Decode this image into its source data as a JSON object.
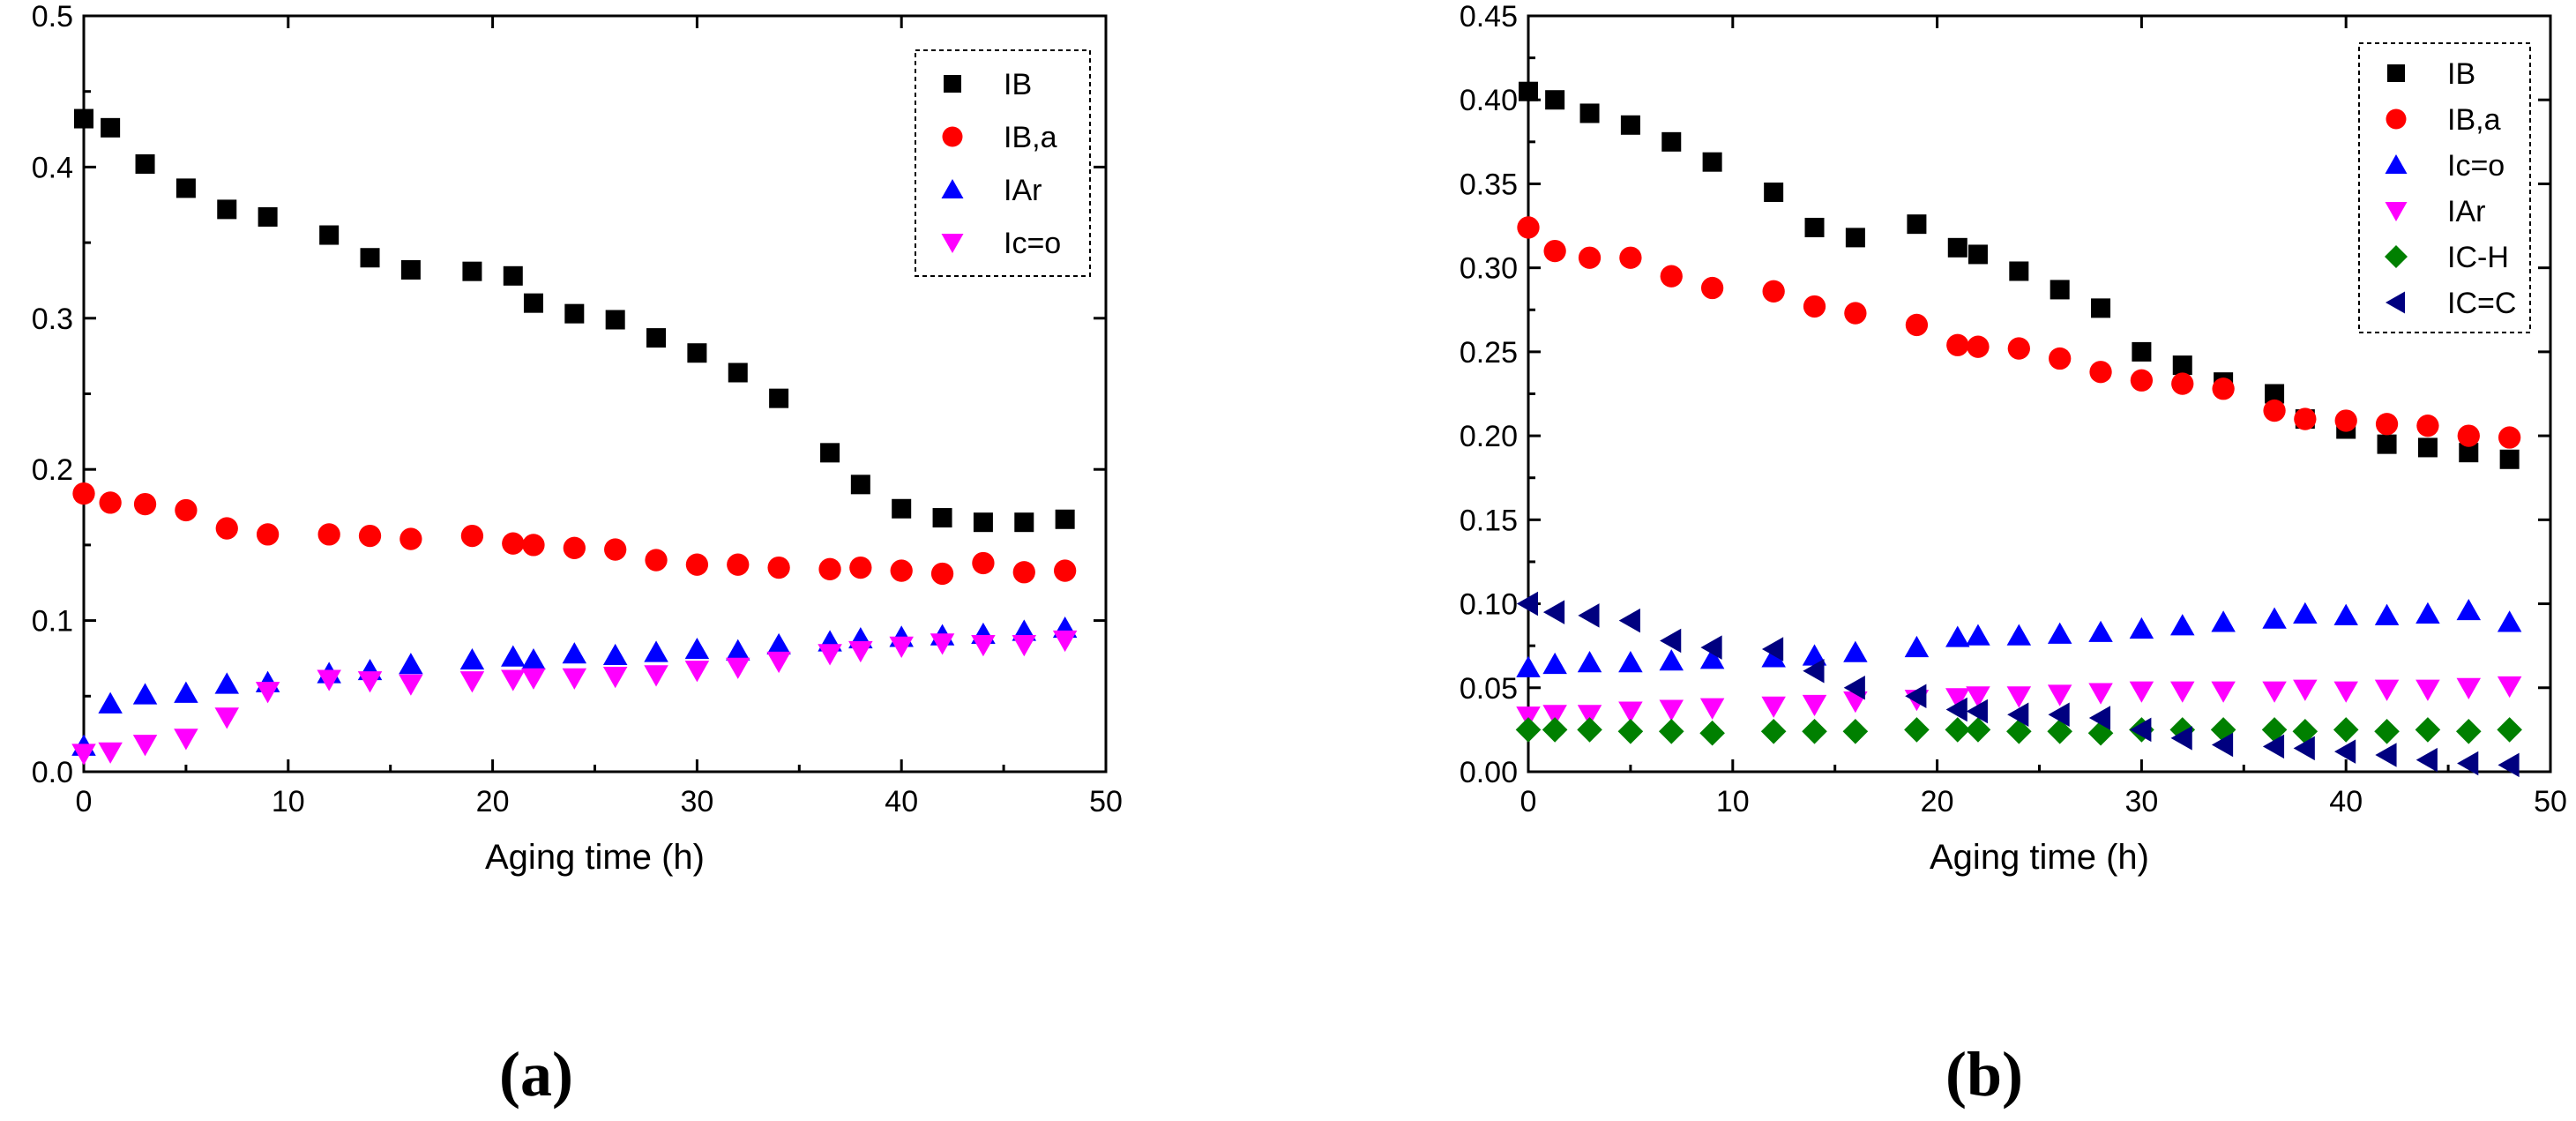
{
  "chart_data": [
    {
      "type": "scatter",
      "panel_label": "(a)",
      "xlabel": "Aging time (h)",
      "ylabel": "",
      "xlim": [
        0,
        50
      ],
      "ylim": [
        0,
        0.5
      ],
      "xticks": [
        "0",
        "10",
        "20",
        "30",
        "40",
        "50"
      ],
      "yticks": [
        "0.0",
        "0.1",
        "0.2",
        "0.3",
        "0.4",
        "0.5"
      ],
      "legend_position": "top-right",
      "series": [
        {
          "name": "IB",
          "marker": "square",
          "color": "#000000",
          "x": [
            0,
            1.3,
            3,
            5,
            7,
            9,
            12,
            14,
            16,
            19,
            21,
            22,
            24,
            26,
            28,
            30,
            32,
            34,
            36.5,
            38,
            40,
            42,
            44,
            46,
            48
          ],
          "y": [
            0.432,
            0.426,
            0.402,
            0.386,
            0.372,
            0.367,
            0.355,
            0.34,
            0.332,
            0.331,
            0.328,
            0.31,
            0.303,
            0.299,
            0.287,
            0.277,
            0.264,
            0.247,
            0.211,
            0.19,
            0.174,
            0.168,
            0.165,
            0.165,
            0.167
          ]
        },
        {
          "name": "IB,a",
          "marker": "circle",
          "color": "#ff0000",
          "x": [
            0,
            1.3,
            3,
            5,
            7,
            9,
            12,
            14,
            16,
            19,
            21,
            22,
            24,
            26,
            28,
            30,
            32,
            34,
            36.5,
            38,
            40,
            42,
            44,
            46,
            48
          ],
          "y": [
            0.184,
            0.178,
            0.177,
            0.173,
            0.161,
            0.157,
            0.157,
            0.156,
            0.154,
            0.156,
            0.151,
            0.15,
            0.148,
            0.147,
            0.14,
            0.137,
            0.137,
            0.135,
            0.134,
            0.135,
            0.133,
            0.131,
            0.138,
            0.132,
            0.133
          ]
        },
        {
          "name": "IAr",
          "marker": "triangle-up",
          "color": "#0000ff",
          "x": [
            0,
            1.3,
            3,
            5,
            7,
            9,
            12,
            14,
            16,
            19,
            21,
            22,
            24,
            26,
            28,
            30,
            32,
            34,
            36.5,
            38,
            40,
            42,
            44,
            46,
            48
          ],
          "y": [
            0.017,
            0.045,
            0.051,
            0.052,
            0.058,
            0.059,
            0.065,
            0.067,
            0.071,
            0.074,
            0.076,
            0.074,
            0.078,
            0.077,
            0.079,
            0.081,
            0.08,
            0.084,
            0.086,
            0.088,
            0.089,
            0.09,
            0.091,
            0.093,
            0.095
          ]
        },
        {
          "name": "Ic=o",
          "marker": "triangle-down",
          "color": "#ff00ff",
          "x": [
            0,
            1.3,
            3,
            5,
            7,
            9,
            12,
            14,
            16,
            19,
            21,
            22,
            24,
            26,
            28,
            30,
            32,
            34,
            36.5,
            38,
            40,
            42,
            44,
            46,
            48
          ],
          "y": [
            0.012,
            0.013,
            0.018,
            0.022,
            0.036,
            0.053,
            0.061,
            0.06,
            0.058,
            0.06,
            0.061,
            0.062,
            0.062,
            0.063,
            0.064,
            0.067,
            0.069,
            0.073,
            0.078,
            0.08,
            0.083,
            0.085,
            0.084,
            0.084,
            0.087
          ]
        }
      ]
    },
    {
      "type": "scatter",
      "panel_label": "(b)",
      "xlabel": "Aging time (h)",
      "ylabel": "",
      "xlim": [
        0,
        50
      ],
      "ylim": [
        0,
        0.45
      ],
      "xticks": [
        "0",
        "10",
        "20",
        "30",
        "40",
        "50"
      ],
      "yticks": [
        "0.00",
        "0.05",
        "0.10",
        "0.15",
        "0.20",
        "0.25",
        "0.30",
        "0.35",
        "0.40",
        "0.45"
      ],
      "legend_position": "top-right",
      "series": [
        {
          "name": "IB",
          "marker": "square",
          "color": "#000000",
          "x": [
            0,
            1.3,
            3,
            5,
            7,
            9,
            12,
            14,
            16,
            19,
            21,
            22,
            24,
            26,
            28,
            30,
            32,
            34,
            36.5,
            38,
            40,
            42,
            44,
            46,
            48
          ],
          "y": [
            0.405,
            0.4,
            0.392,
            0.385,
            0.375,
            0.363,
            0.345,
            0.324,
            0.318,
            0.326,
            0.312,
            0.308,
            0.298,
            0.287,
            0.276,
            0.25,
            0.242,
            0.232,
            0.225,
            0.21,
            0.204,
            0.195,
            0.193,
            0.19,
            0.186
          ]
        },
        {
          "name": "IB,a",
          "marker": "circle",
          "color": "#ff0000",
          "x": [
            0,
            1.3,
            3,
            5,
            7,
            9,
            12,
            14,
            16,
            19,
            21,
            22,
            24,
            26,
            28,
            30,
            32,
            34,
            36.5,
            38,
            40,
            42,
            44,
            46,
            48
          ],
          "y": [
            0.324,
            0.31,
            0.306,
            0.306,
            0.295,
            0.288,
            0.286,
            0.277,
            0.273,
            0.266,
            0.254,
            0.253,
            0.252,
            0.246,
            0.238,
            0.233,
            0.231,
            0.228,
            0.215,
            0.21,
            0.209,
            0.207,
            0.206,
            0.2,
            0.199
          ]
        },
        {
          "name": "Ic=o",
          "marker": "triangle-up",
          "color": "#0000ff",
          "x": [
            0,
            1.3,
            3,
            5,
            7,
            9,
            12,
            14,
            16,
            19,
            21,
            22,
            24,
            26,
            28,
            30,
            32,
            34,
            36.5,
            38,
            40,
            42,
            44,
            46,
            48
          ],
          "y": [
            0.062,
            0.064,
            0.065,
            0.065,
            0.066,
            0.067,
            0.068,
            0.069,
            0.071,
            0.074,
            0.08,
            0.081,
            0.081,
            0.082,
            0.083,
            0.085,
            0.087,
            0.089,
            0.091,
            0.094,
            0.093,
            0.093,
            0.094,
            0.096,
            0.089
          ]
        },
        {
          "name": "IAr",
          "marker": "triangle-down",
          "color": "#ff00ff",
          "x": [
            0,
            1.3,
            3,
            5,
            7,
            9,
            12,
            14,
            16,
            19,
            21,
            22,
            24,
            26,
            28,
            30,
            32,
            34,
            36.5,
            38,
            40,
            42,
            44,
            46,
            48
          ],
          "y": [
            0.033,
            0.034,
            0.034,
            0.036,
            0.037,
            0.038,
            0.039,
            0.04,
            0.042,
            0.043,
            0.044,
            0.045,
            0.045,
            0.046,
            0.047,
            0.048,
            0.048,
            0.048,
            0.048,
            0.049,
            0.048,
            0.049,
            0.049,
            0.05,
            0.051
          ]
        },
        {
          "name": "IC-H",
          "marker": "diamond",
          "color": "#008000",
          "x": [
            0,
            1.3,
            3,
            5,
            7,
            9,
            12,
            14,
            16,
            19,
            21,
            22,
            24,
            26,
            28,
            30,
            32,
            34,
            36.5,
            38,
            40,
            42,
            44,
            46,
            48
          ],
          "y": [
            0.025,
            0.025,
            0.025,
            0.024,
            0.024,
            0.023,
            0.024,
            0.024,
            0.024,
            0.025,
            0.025,
            0.025,
            0.024,
            0.024,
            0.023,
            0.025,
            0.025,
            0.025,
            0.025,
            0.024,
            0.025,
            0.024,
            0.025,
            0.024,
            0.025
          ]
        },
        {
          "name": "IC=C",
          "marker": "triangle-left",
          "color": "#000080",
          "x": [
            0,
            1.3,
            3,
            5,
            7,
            9,
            12,
            14,
            16,
            19,
            21,
            22,
            24,
            26,
            28,
            30,
            32,
            34,
            36.5,
            38,
            40,
            42,
            44,
            46,
            48
          ],
          "y": [
            0.1,
            0.095,
            0.093,
            0.09,
            0.078,
            0.074,
            0.073,
            0.06,
            0.05,
            0.045,
            0.037,
            0.036,
            0.034,
            0.034,
            0.032,
            0.025,
            0.02,
            0.016,
            0.015,
            0.014,
            0.012,
            0.01,
            0.007,
            0.005,
            0.004
          ]
        }
      ]
    }
  ]
}
